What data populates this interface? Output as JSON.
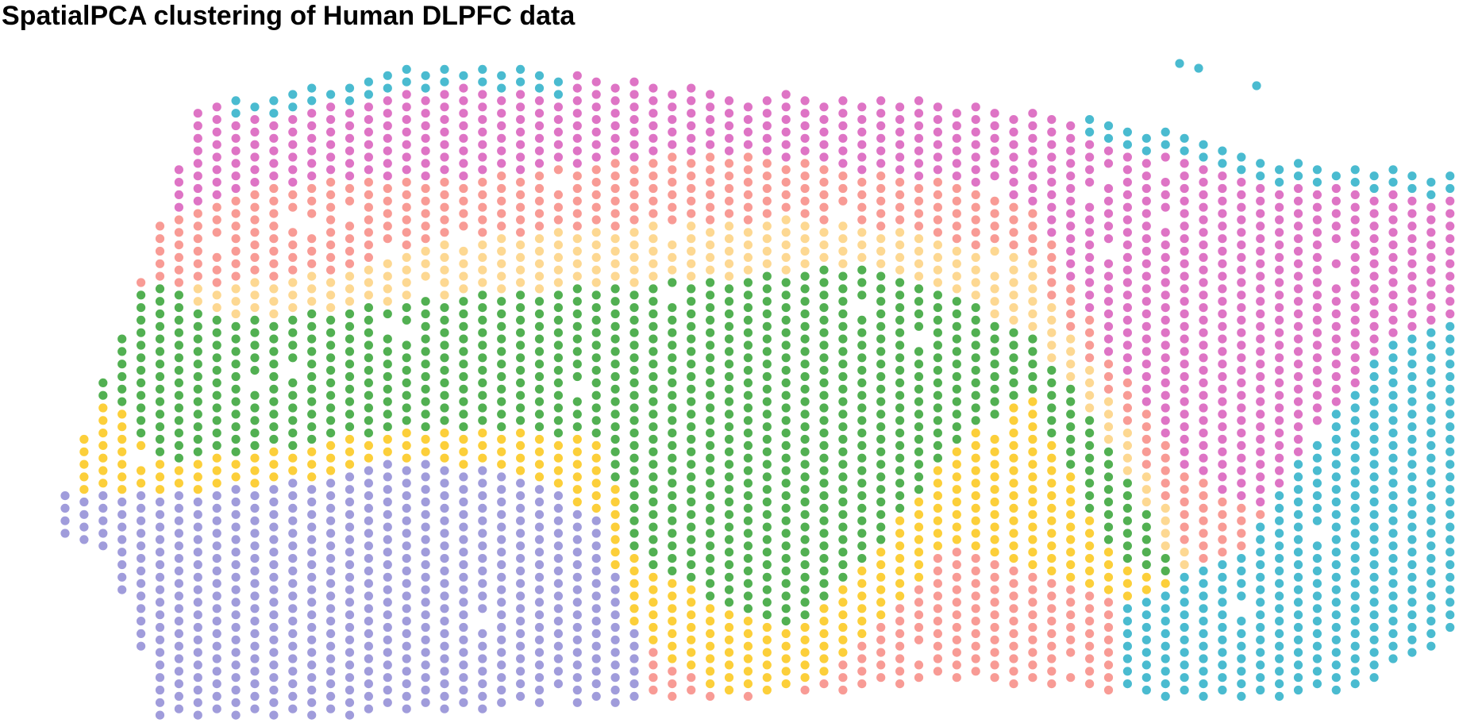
{
  "title": "SpatialPCA clustering of Human DLPFC data",
  "chart_data": {
    "type": "scatter",
    "title": "SpatialPCA clustering of Human DLPFC data",
    "xlabel": "",
    "ylabel": "",
    "grid": false,
    "legend": "none",
    "axes_visible": false,
    "point_shape": "circle",
    "layout_note": "spots on a staggered hexagonal grid; cluster assigned by spatial bands",
    "clusters": [
      {
        "id": "1",
        "color": "#DE74C5",
        "region": "outer top layer band"
      },
      {
        "id": "2",
        "color": "#F89B95",
        "region": "second band below top"
      },
      {
        "id": "3",
        "color": "#FDD892",
        "region": "third band (pale yellow)"
      },
      {
        "id": "4",
        "color": "#52B052",
        "region": "central wide band"
      },
      {
        "id": "5",
        "color": "#FCCF3A",
        "region": "lower narrow band"
      },
      {
        "id": "6",
        "color": "#A09CDB",
        "region": "bottom-left region"
      },
      {
        "id": "7",
        "color": "#4ABBD0",
        "region": "top cap and right edge"
      }
    ]
  }
}
